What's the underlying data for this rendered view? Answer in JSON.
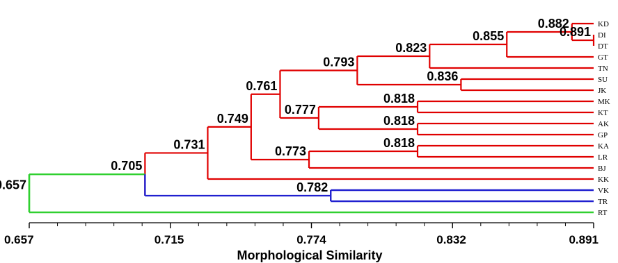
{
  "chart_data": {
    "type": "dendrogram",
    "xlabel": "Morphological  Similarity",
    "xlim": [
      0.657,
      0.891
    ],
    "ticks": [
      "0.657",
      "0.715",
      "0.774",
      "0.832",
      "0.891"
    ],
    "tick_values": [
      0.657,
      0.715,
      0.774,
      0.832,
      0.891
    ],
    "leaves": [
      "KD",
      "DI",
      "DT",
      "GT",
      "TN",
      "SU",
      "JK",
      "MK",
      "KT",
      "AK",
      "GP",
      "KA",
      "LR",
      "BJ",
      "KK",
      "VK",
      "TR",
      "RT"
    ],
    "merges": [
      {
        "children": [
          "DI",
          "DT"
        ],
        "similarity": 0.891,
        "label": "0.891",
        "color": "#e00000"
      },
      {
        "children": [
          "KD",
          "DI+DT"
        ],
        "similarity": 0.882,
        "label": "0.882",
        "color": "#e00000"
      },
      {
        "children": [
          "KD+DI+DT",
          "GT"
        ],
        "similarity": 0.855,
        "label": "0.855",
        "color": "#e00000"
      },
      {
        "children": [
          "KD+DI+DT+GT",
          "TN"
        ],
        "similarity": 0.823,
        "label": "0.823",
        "color": "#e00000"
      },
      {
        "children": [
          "SU",
          "JK"
        ],
        "similarity": 0.836,
        "label": "0.836",
        "color": "#e00000"
      },
      {
        "children": [
          "KD..TN",
          "SU+JK"
        ],
        "similarity": 0.793,
        "label": "0.793",
        "color": "#e00000"
      },
      {
        "children": [
          "MK",
          "KT"
        ],
        "similarity": 0.818,
        "label": "0.818",
        "color": "#e00000"
      },
      {
        "children": [
          "AK",
          "GP"
        ],
        "similarity": 0.818,
        "label": "0.818",
        "color": "#e00000"
      },
      {
        "children": [
          "MK+KT",
          "AK+GP"
        ],
        "similarity": 0.777,
        "label": "0.777",
        "color": "#e00000"
      },
      {
        "children": [
          "KD..JK",
          "MK..GP"
        ],
        "similarity": 0.761,
        "label": "0.761",
        "color": "#e00000"
      },
      {
        "children": [
          "KA",
          "LR"
        ],
        "similarity": 0.818,
        "label": "0.818",
        "color": "#e00000"
      },
      {
        "children": [
          "KA+LR",
          "BJ"
        ],
        "similarity": 0.773,
        "label": "0.773",
        "color": "#e00000"
      },
      {
        "children": [
          "KD..GP",
          "KA..BJ"
        ],
        "similarity": 0.749,
        "label": "0.749",
        "color": "#e00000"
      },
      {
        "children": [
          "KD..BJ",
          "KK"
        ],
        "similarity": 0.731,
        "label": "0.731",
        "color": "#e00000"
      },
      {
        "children": [
          "VK",
          "TR"
        ],
        "similarity": 0.782,
        "label": "0.782",
        "color": "#2020d0"
      },
      {
        "children": [
          "KD..KK",
          "VK+TR"
        ],
        "similarity": 0.705,
        "label": "0.705",
        "color": "#e00000"
      },
      {
        "children": [
          "KD..TR",
          "RT"
        ],
        "similarity": 0.657,
        "label": "0.657",
        "color": "#30d030"
      }
    ],
    "colors": {
      "main_cluster": "#e00000",
      "vk_tr_cluster": "#2020d0",
      "outgroup": "#30d030",
      "axis": "#000000"
    }
  }
}
